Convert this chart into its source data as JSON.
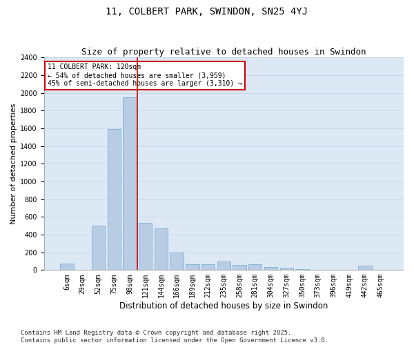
{
  "title": "11, COLBERT PARK, SWINDON, SN25 4YJ",
  "subtitle": "Size of property relative to detached houses in Swindon",
  "xlabel": "Distribution of detached houses by size in Swindon",
  "ylabel": "Number of detached properties",
  "categories": [
    "6sqm",
    "29sqm",
    "52sqm",
    "75sqm",
    "98sqm",
    "121sqm",
    "144sqm",
    "166sqm",
    "189sqm",
    "212sqm",
    "235sqm",
    "258sqm",
    "281sqm",
    "304sqm",
    "327sqm",
    "350sqm",
    "373sqm",
    "396sqm",
    "419sqm",
    "442sqm",
    "465sqm"
  ],
  "values": [
    75,
    0,
    500,
    1590,
    1950,
    530,
    470,
    200,
    65,
    65,
    95,
    60,
    65,
    35,
    25,
    10,
    0,
    0,
    0,
    50,
    0
  ],
  "bar_color": "#b8cce4",
  "bar_edge_color": "#7bafd4",
  "grid_color": "#c8d8e8",
  "bg_color": "#dce9f5",
  "vline_color": "#cc0000",
  "vline_index": 4.5,
  "annotation_text": "11 COLBERT PARK: 120sqm\n← 54% of detached houses are smaller (3,959)\n45% of semi-detached houses are larger (3,310) →",
  "annotation_box_edgecolor": "#cc0000",
  "ylim": [
    0,
    2400
  ],
  "yticks": [
    0,
    200,
    400,
    600,
    800,
    1000,
    1200,
    1400,
    1600,
    1800,
    2000,
    2200,
    2400
  ],
  "footnote": "Contains HM Land Registry data © Crown copyright and database right 2025.\nContains public sector information licensed under the Open Government Licence v3.0.",
  "title_fontsize": 10,
  "subtitle_fontsize": 9,
  "xlabel_fontsize": 8.5,
  "ylabel_fontsize": 8,
  "tick_fontsize": 7,
  "annot_fontsize": 7,
  "footnote_fontsize": 6.5
}
